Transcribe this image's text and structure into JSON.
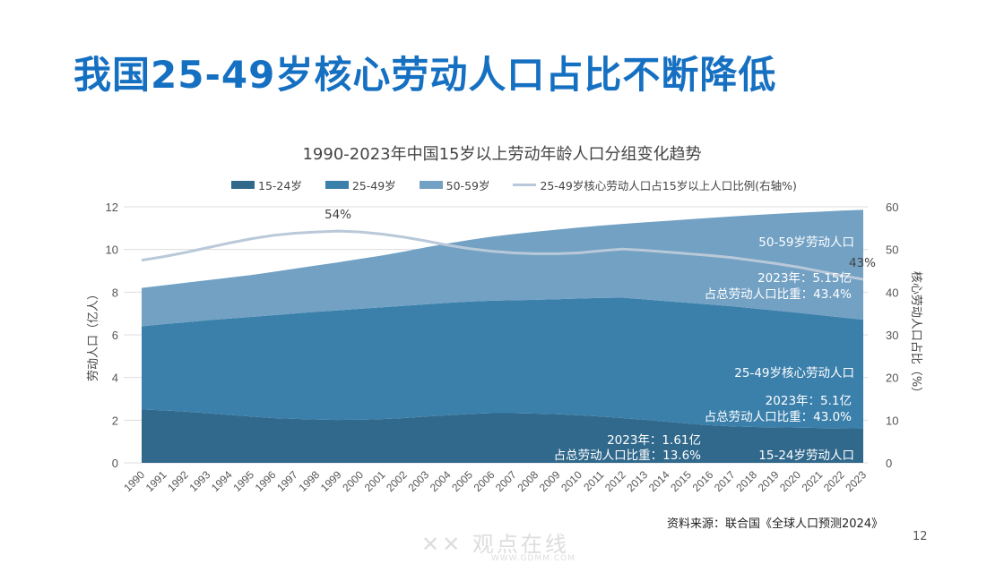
{
  "slide": {
    "title": "我国25-49岁核心劳动人口占比不断降低",
    "source": "资料来源：联合国《全球人口预测2024》",
    "page_number": "12",
    "watermark": "WWW.GDMM.COM"
  },
  "chart_data": {
    "type": "area",
    "stacked": true,
    "title": "1990-2023年中国15岁以上劳动年龄人口分组变化趋势",
    "ylabel": "劳动人口（亿人）",
    "y2label": "核心劳动人口占比（%）",
    "ylim": [
      0,
      12
    ],
    "yticks": [
      0,
      2,
      4,
      6,
      8,
      10,
      12
    ],
    "y2lim": [
      0,
      60
    ],
    "y2ticks": [
      0,
      10,
      20,
      30,
      40,
      50,
      60
    ],
    "grid": true,
    "legend_position": "top",
    "x": [
      1990,
      1991,
      1992,
      1993,
      1994,
      1995,
      1996,
      1997,
      1998,
      1999,
      2000,
      2001,
      2002,
      2003,
      2004,
      2005,
      2006,
      2007,
      2008,
      2009,
      2010,
      2011,
      2012,
      2013,
      2014,
      2015,
      2016,
      2017,
      2018,
      2019,
      2020,
      2021,
      2022,
      2023
    ],
    "series": [
      {
        "name": "15-24岁",
        "color": "#31698c",
        "axis": "left",
        "values": [
          2.5,
          2.46,
          2.4,
          2.33,
          2.25,
          2.17,
          2.1,
          2.06,
          2.03,
          2.01,
          2.02,
          2.05,
          2.1,
          2.17,
          2.23,
          2.29,
          2.33,
          2.33,
          2.31,
          2.28,
          2.23,
          2.17,
          2.1,
          2.02,
          1.93,
          1.84,
          1.76,
          1.71,
          1.68,
          1.66,
          1.65,
          1.63,
          1.62,
          1.61
        ]
      },
      {
        "name": "25-49岁",
        "color": "#3b80ab",
        "axis": "left",
        "values": [
          3.9,
          4.04,
          4.19,
          4.35,
          4.51,
          4.67,
          4.82,
          4.94,
          5.05,
          5.14,
          5.2,
          5.24,
          5.26,
          5.26,
          5.27,
          5.27,
          5.27,
          5.29,
          5.33,
          5.39,
          5.47,
          5.56,
          5.64,
          5.64,
          5.65,
          5.66,
          5.66,
          5.63,
          5.56,
          5.48,
          5.39,
          5.3,
          5.2,
          5.1
        ]
      },
      {
        "name": "50-59岁",
        "color": "#72a1c4",
        "axis": "left",
        "values": [
          1.8,
          1.82,
          1.85,
          1.88,
          1.92,
          1.96,
          2.03,
          2.1,
          2.17,
          2.25,
          2.34,
          2.43,
          2.54,
          2.67,
          2.78,
          2.89,
          3.0,
          3.1,
          3.19,
          3.26,
          3.33,
          3.39,
          3.46,
          3.61,
          3.76,
          3.91,
          4.06,
          4.21,
          4.37,
          4.53,
          4.68,
          4.84,
          5.0,
          5.15
        ]
      },
      {
        "name": "25-49岁核心劳动人口占15岁以上人口比例(右轴%)",
        "color": "#b9c9d9",
        "axis": "right",
        "type": "line",
        "values": [
          47.5,
          48.3,
          49.3,
          50.4,
          51.5,
          52.5,
          53.3,
          53.8,
          54.1,
          54.3,
          54.1,
          53.6,
          52.9,
          52.0,
          51.0,
          50.2,
          49.6,
          49.2,
          49.0,
          49.0,
          49.2,
          49.7,
          50.1,
          49.8,
          49.4,
          49.0,
          48.6,
          48.1,
          47.4,
          46.7,
          45.9,
          44.9,
          43.9,
          43.0
        ]
      }
    ],
    "annotations": {
      "peak_label": "54%",
      "end_label": "43%",
      "g5059_name": "50-59岁劳动人口",
      "g5059_value": "2023年：5.15亿",
      "g5059_share": "占总劳动人口比重：43.4%",
      "g2549_name": "25-49岁核心劳动人口",
      "g2549_value": "2023年：5.1亿",
      "g2549_share": "占总劳动人口比重：43.0%",
      "g1524_value": "2023年：1.61亿",
      "g1524_share": "占总劳动人口比重：13.6%",
      "g1524_name": "15-24岁劳动人口"
    }
  }
}
